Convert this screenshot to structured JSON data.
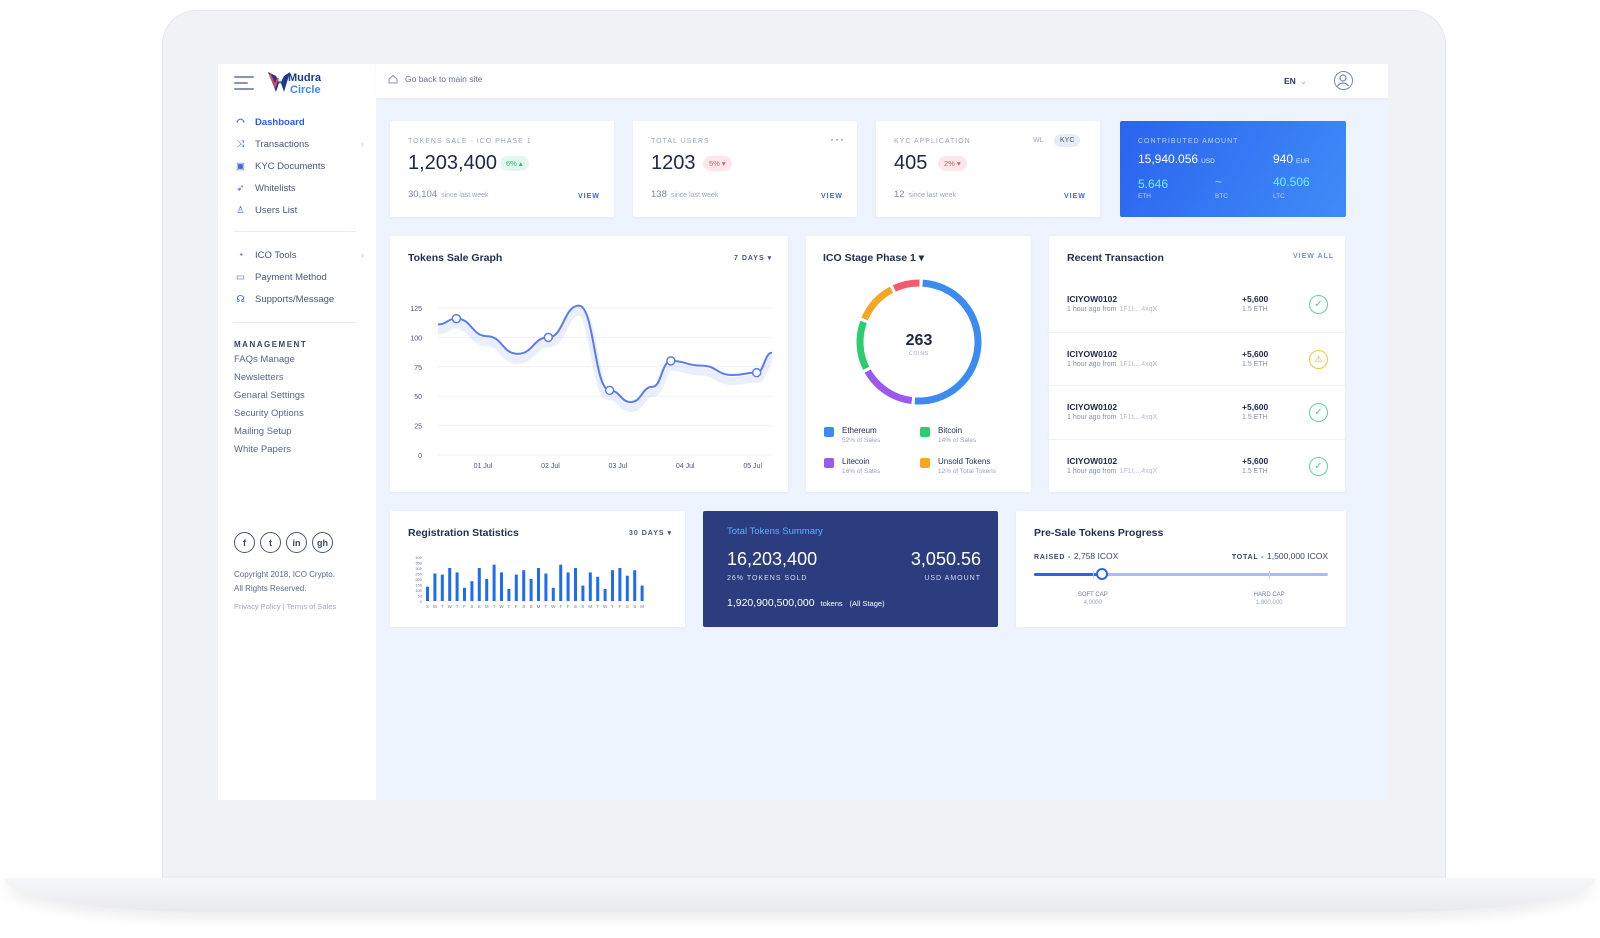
{
  "brand": {
    "logo_top": "Mudra",
    "logo_bottom": "Circle",
    "logo_alt": "Mudra Circle",
    "accent": "#2b63f0"
  },
  "sidebar": {
    "main_items": [
      {
        "label": "Dashboard",
        "icon": "dashboard-icon",
        "active": true
      },
      {
        "label": "Transactions",
        "icon": "shuffle-icon",
        "chevron": true
      },
      {
        "label": "KYC Documents",
        "icon": "documents-icon"
      },
      {
        "label": "Whitelists",
        "icon": "cursor-icon"
      },
      {
        "label": "Users List",
        "icon": "user-icon"
      }
    ],
    "tool_items": [
      {
        "label": "ICO Tools",
        "icon": "pie-icon",
        "chevron": true
      },
      {
        "label": "Payment Method",
        "icon": "wallet-icon"
      },
      {
        "label": "Supports/Message",
        "icon": "headset-icon"
      }
    ],
    "management_title": "MANAGEMENT",
    "management_items": [
      "FAQs Manage",
      "Newsletters",
      "Genaral Settings",
      "Security Options",
      "Mailing Setup",
      "White Papers"
    ],
    "social": [
      "f",
      "t",
      "in",
      "gh"
    ],
    "copyright_line1": "Copyright 2018, ICO Crypto.",
    "copyright_line2": "All Rights Reserved.",
    "privacy": "Privacy Policy",
    "terms": "Terms of Sales"
  },
  "topbar": {
    "home_label": "Go back to main site",
    "lang": "EN"
  },
  "stats": {
    "tokens_sale": {
      "label": "TOKENS SALE - ICO PHASE 1",
      "value": "1,203,400",
      "badge": "6%",
      "badge_dir": "up",
      "sub_value": "30,104",
      "sub_label": "since last week",
      "link": "VIEW"
    },
    "total_users": {
      "label": "TOTAL USERS",
      "value": "1203",
      "badge": "5%",
      "badge_dir": "down",
      "sub_value": "138",
      "sub_label": "since last week",
      "link": "VIEW"
    },
    "kyc": {
      "label": "KYC APPLICATION",
      "value": "405",
      "badge": "2%",
      "badge_dir": "down",
      "sub_value": "12",
      "sub_label": "since last week",
      "link": "VIEW",
      "tab_wl": "WL",
      "tab_kyc": "KYC"
    }
  },
  "contributed": {
    "label": "CONTRIBUTED AMOUNT",
    "usd": "15,940.056",
    "usd_unit": "USD",
    "eur": "940",
    "eur_unit": "EUR",
    "eth": "5.646",
    "eth_unit": "ETH",
    "btc": "~",
    "btc_unit": "BTC",
    "ltc": "40.506",
    "ltc_unit": "LTC"
  },
  "sale_graph": {
    "title": "Tokens Sale Graph",
    "filter": "7 DAYS"
  },
  "chart_data": [
    {
      "type": "line",
      "title": "Tokens Sale Graph",
      "x": [
        "01 Jul",
        "02 Jul",
        "03 Jul",
        "04 Jul",
        "05 Jul"
      ],
      "yticks": [
        0,
        25,
        50,
        75,
        100,
        125
      ],
      "ylim": [
        0,
        125
      ],
      "series": [
        {
          "values_path": [
            [
              0.2,
              111
            ],
            [
              0.5,
              116
            ],
            [
              1.0,
              101
            ],
            [
              1.5,
              86
            ],
            [
              2.0,
              100
            ],
            [
              2.5,
              127
            ],
            [
              3.0,
              55
            ],
            [
              3.35,
              45
            ],
            [
              3.7,
              58
            ],
            [
              4.0,
              80
            ],
            [
              4.5,
              76
            ],
            [
              5.0,
              68
            ],
            [
              5.4,
              70
            ],
            [
              5.65,
              87
            ]
          ],
          "markers_x": [
            0.5,
            2.0,
            3.0,
            4.0,
            5.4
          ]
        }
      ],
      "grid": true,
      "color": "#5b7cf0"
    },
    {
      "type": "pie",
      "title": "ICO Stage Phase 1",
      "center_value": "263",
      "center_label": "COINS",
      "slices": [
        {
          "name": "Ethereum",
          "value": 52,
          "color": "#3b8bf0",
          "note": "52% of Sales"
        },
        {
          "name": "Bitcoin",
          "value": 14,
          "color": "#2ecc71",
          "note": "14% of Sales"
        },
        {
          "name": "Litecoin",
          "value": 16,
          "color": "#9b59f0",
          "note": "16% of Sales"
        },
        {
          "name": "Unsold Tokens",
          "value": 12,
          "color": "#f5a623",
          "note": "12% of Total Tokens"
        },
        {
          "name": "",
          "value": 8,
          "color": "#f25b6d"
        }
      ],
      "legend": "bottom"
    },
    {
      "type": "bar",
      "title": "Registration Statistics",
      "categories": [
        "S",
        "M",
        "T",
        "W",
        "T",
        "F",
        "S",
        "S",
        "M",
        "T",
        "W",
        "T",
        "F",
        "S",
        "S",
        "M",
        "T",
        "W",
        "T",
        "F",
        "S",
        "S",
        "M",
        "T",
        "W",
        "T",
        "F",
        "S",
        "S",
        "M"
      ],
      "values": [
        130,
        250,
        240,
        300,
        260,
        120,
        180,
        300,
        200,
        330,
        260,
        110,
        240,
        280,
        200,
        300,
        250,
        120,
        330,
        260,
        300,
        140,
        260,
        220,
        110,
        280,
        300,
        230,
        280,
        140
      ],
      "yticks": [
        0,
        50,
        100,
        150,
        200,
        250,
        300,
        350,
        400
      ],
      "ylim": [
        0,
        400
      ],
      "color": "#1f6cf0"
    }
  ],
  "ico_stage": {
    "title": "ICO Stage Phase 1"
  },
  "registration": {
    "title": "Registration Statistics",
    "filter": "30 DAYS"
  },
  "recent": {
    "title": "Recent Transaction",
    "view_all": "VIEW ALL",
    "rows": [
      {
        "id": "ICIYOW0102",
        "ago": "1 hour ago from",
        "addr": "1F1t....4xqX",
        "amount": "+5,600",
        "currency": "1.5 ETH",
        "status": "success"
      },
      {
        "id": "ICIYOW0102",
        "ago": "1 hour ago from",
        "addr": "1F1t....4xqX",
        "amount": "+5,600",
        "currency": "1.5 ETH",
        "status": "warning"
      },
      {
        "id": "ICIYOW0102",
        "ago": "1 hour ago from",
        "addr": "1F1t....4xqX",
        "amount": "+5,600",
        "currency": "1.5 ETH",
        "status": "success"
      },
      {
        "id": "ICIYOW0102",
        "ago": "1 hour ago from",
        "addr": "1F1t....4xqX",
        "amount": "+5,600",
        "currency": "1.5 ETH",
        "status": "success"
      }
    ]
  },
  "summary": {
    "title": "Total Tokens Summary",
    "tokens": "16,203,400",
    "tokens_label": "26% TOKENS SOLD",
    "usd": "3,050.56",
    "usd_label": "USD AMOUNT",
    "total": "1,920,900,500,000",
    "total_unit": "tokens",
    "total_note": "(All Stage)"
  },
  "presale": {
    "title": "Pre-Sale Tokens Progress",
    "raised_label": "RAISED -",
    "raised": "2,758 ICOX",
    "total_label": "TOTAL -",
    "total": "1,500,000 ICOX",
    "progress": 0.23,
    "soft_label": "SOFT CAP",
    "soft_value": "4,0000",
    "soft_at": 0.2,
    "hard_label": "HARD CAP",
    "hard_value": "1,800,000",
    "hard_at": 0.8
  }
}
